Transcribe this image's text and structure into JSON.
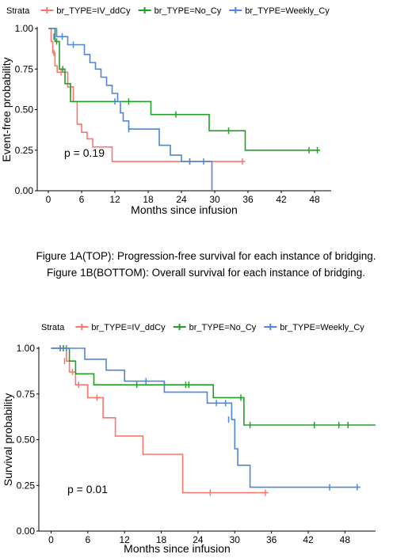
{
  "captions": [
    "Figure 1A(TOP): Progression-free survival for each instance of bridging.",
    "Figure 1B(BOTTOM): Overall survival for each instance of bridging."
  ],
  "colors": {
    "IV_ddCy": "#F8766D",
    "No_Cy": "#22A023",
    "Weekly_Cy": "#4E86D9"
  },
  "chart_data": [
    {
      "type": "line",
      "subtype": "kaplan-meier",
      "legend_title": "Strata",
      "legend_position": "top",
      "xlabel": "Months since infusion",
      "ylabel": "Event-free probability",
      "xlim": [
        -2,
        51
      ],
      "ylim": [
        0,
        1
      ],
      "xticks": [
        "0",
        "6",
        "12",
        "18",
        "24",
        "30",
        "36",
        "42",
        "48"
      ],
      "yticks": [
        "0.00",
        "0.25",
        "0.50",
        "0.75",
        "1.00"
      ],
      "annotation": "p = 0.19",
      "series": [
        {
          "name": "br_TYPE=IV_ddCy",
          "color": "#F8766D",
          "steps": [
            [
              0,
              1.0
            ],
            [
              0.5,
              0.92
            ],
            [
              0.8,
              0.85
            ],
            [
              1.2,
              0.77
            ],
            [
              1.6,
              0.73
            ],
            [
              3.0,
              0.73
            ],
            [
              3.5,
              0.64
            ],
            [
              4.5,
              0.55
            ],
            [
              5.2,
              0.41
            ],
            [
              6.0,
              0.36
            ],
            [
              7.0,
              0.32
            ],
            [
              8.0,
              0.27
            ],
            [
              11.5,
              0.18
            ],
            [
              35.5,
              0.18
            ]
          ],
          "censors": [
            [
              1.0,
              0.85
            ],
            [
              2.3,
              0.73
            ],
            [
              4.0,
              0.62
            ],
            [
              25.5,
              0.18
            ],
            [
              35.0,
              0.18
            ]
          ]
        },
        {
          "name": "br_TYPE=No_Cy",
          "color": "#22A023",
          "steps": [
            [
              0,
              1.0
            ],
            [
              1.2,
              0.92
            ],
            [
              2.0,
              0.75
            ],
            [
              3.0,
              0.66
            ],
            [
              4.0,
              0.55
            ],
            [
              18.5,
              0.47
            ],
            [
              29.0,
              0.37
            ],
            [
              35.5,
              0.25
            ],
            [
              49.0,
              0.25
            ]
          ],
          "censors": [
            [
              1.5,
              0.92
            ],
            [
              2.6,
              0.75
            ],
            [
              14.5,
              0.55
            ],
            [
              23.0,
              0.47
            ],
            [
              32.5,
              0.37
            ],
            [
              47.0,
              0.25
            ],
            [
              48.5,
              0.25
            ]
          ]
        },
        {
          "name": "br_TYPE=Weekly_Cy",
          "color": "#4E86D9",
          "steps": [
            [
              0,
              1.0
            ],
            [
              1.5,
              0.95
            ],
            [
              3.5,
              0.9
            ],
            [
              6.5,
              0.84
            ],
            [
              7.5,
              0.79
            ],
            [
              8.5,
              0.75
            ],
            [
              9.5,
              0.7
            ],
            [
              10.5,
              0.65
            ],
            [
              11.5,
              0.6
            ],
            [
              12.5,
              0.55
            ],
            [
              13.0,
              0.48
            ],
            [
              13.5,
              0.43
            ],
            [
              14.5,
              0.38
            ],
            [
              20.0,
              0.28
            ],
            [
              22.0,
              0.22
            ],
            [
              24.0,
              0.18
            ],
            [
              29.5,
              0.0
            ]
          ],
          "censors": [
            [
              1.0,
              0.95
            ],
            [
              2.5,
              0.95
            ],
            [
              4.5,
              0.9
            ],
            [
              12.0,
              0.55
            ],
            [
              14.5,
              0.38
            ],
            [
              25.5,
              0.18
            ],
            [
              28.0,
              0.18
            ]
          ]
        }
      ]
    },
    {
      "type": "line",
      "subtype": "kaplan-meier",
      "legend_title": "Strata",
      "legend_position": "top",
      "xlabel": "Months since infusion",
      "ylabel": "Survival probability",
      "xlim": [
        -2,
        53
      ],
      "ylim": [
        0,
        1
      ],
      "xticks": [
        "0",
        "6",
        "12",
        "18",
        "24",
        "30",
        "36",
        "42",
        "48"
      ],
      "yticks": [
        "0.00",
        "0.25",
        "0.50",
        "0.75",
        "1.00"
      ],
      "annotation": "p = 0.01",
      "series": [
        {
          "name": "br_TYPE=IV_ddCy",
          "color": "#F8766D",
          "steps": [
            [
              0,
              1.0
            ],
            [
              2.5,
              0.93
            ],
            [
              3.0,
              0.87
            ],
            [
              4.0,
              0.8
            ],
            [
              6.0,
              0.73
            ],
            [
              8.5,
              0.62
            ],
            [
              10.5,
              0.52
            ],
            [
              15.0,
              0.42
            ],
            [
              21.5,
              0.21
            ],
            [
              35.5,
              0.21
            ]
          ],
          "censors": [
            [
              1.5,
              1.0
            ],
            [
              2.2,
              0.93
            ],
            [
              3.5,
              0.87
            ],
            [
              4.5,
              0.8
            ],
            [
              7.5,
              0.73
            ],
            [
              26.0,
              0.21
            ],
            [
              35.0,
              0.21
            ]
          ]
        },
        {
          "name": "br_TYPE=No_Cy",
          "color": "#22A023",
          "steps": [
            [
              0,
              1.0
            ],
            [
              3.0,
              0.93
            ],
            [
              4.0,
              0.86
            ],
            [
              7.0,
              0.8
            ],
            [
              26.5,
              0.73
            ],
            [
              31.5,
              0.58
            ],
            [
              53.0,
              0.58
            ]
          ],
          "censors": [
            [
              2.0,
              1.0
            ],
            [
              14.0,
              0.8
            ],
            [
              18.5,
              0.8
            ],
            [
              22.0,
              0.8
            ],
            [
              22.5,
              0.8
            ],
            [
              31.0,
              0.73
            ],
            [
              32.5,
              0.58
            ],
            [
              43.0,
              0.58
            ],
            [
              47.0,
              0.58
            ],
            [
              48.5,
              0.58
            ]
          ]
        },
        {
          "name": "br_TYPE=Weekly_Cy",
          "color": "#4E86D9",
          "steps": [
            [
              0,
              1.0
            ],
            [
              5.5,
              0.94
            ],
            [
              9.0,
              0.88
            ],
            [
              12.0,
              0.82
            ],
            [
              18.5,
              0.76
            ],
            [
              25.5,
              0.7
            ],
            [
              29.5,
              0.61
            ],
            [
              30.0,
              0.45
            ],
            [
              30.5,
              0.36
            ],
            [
              32.5,
              0.24
            ],
            [
              50.5,
              0.24
            ]
          ],
          "censors": [
            [
              1.5,
              1.0
            ],
            [
              2.5,
              1.0
            ],
            [
              15.5,
              0.82
            ],
            [
              27.0,
              0.7
            ],
            [
              28.5,
              0.7
            ],
            [
              29.0,
              0.61
            ],
            [
              45.5,
              0.24
            ],
            [
              50.0,
              0.24
            ]
          ]
        }
      ]
    }
  ]
}
